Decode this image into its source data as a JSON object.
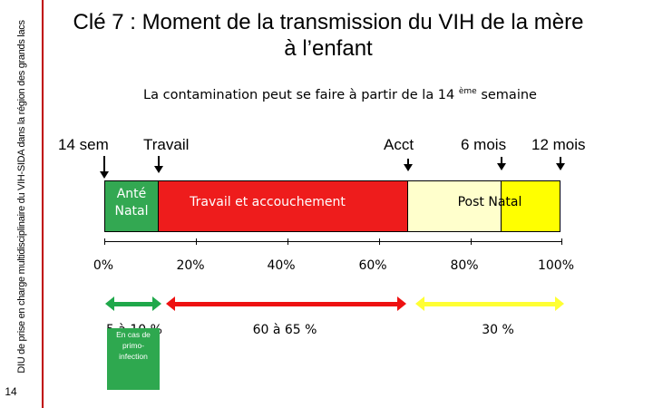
{
  "sidebar": {
    "text": "DIU de prise en charge multidisciplinaire du VIH-SIDA dans la région des grands lacs",
    "page_number": "14",
    "accent_color": "#c00000"
  },
  "title": {
    "line1": "Clé 7 : Moment de la transmission du VIH de la mère",
    "line2": "à l’enfant"
  },
  "subtitle": {
    "text_before": "La contamination peut se faire à partir de la 14",
    "superscript": "ème",
    "text_after": " semaine"
  },
  "markers": [
    {
      "label": "14 sem"
    },
    {
      "label": "Travail"
    },
    {
      "label": "Acct"
    },
    {
      "label": "6 mois"
    },
    {
      "label": "12 mois"
    }
  ],
  "segments": {
    "antenatal": {
      "line1": "Anté",
      "line2": "Natal",
      "color": "#33a852"
    },
    "travail": {
      "label": "Travail et accouchement",
      "color": "#ee1c1c"
    },
    "postnatal": {
      "label": "Post Natal",
      "color_light": "#ffffcc",
      "color_strong": "#ffff00"
    }
  },
  "axis": {
    "ticks": [
      "0%",
      "20%",
      "40%",
      "60%",
      "80%",
      "100%"
    ]
  },
  "ranges": [
    {
      "label": "5 à 10 %",
      "color": "#1fa84a"
    },
    {
      "label": "60 à 65 %",
      "color": "#ee1111"
    },
    {
      "label": "30 %",
      "color": "#ffff33"
    }
  ],
  "note": {
    "line1": "En cas de",
    "line2": "primo-",
    "line3": "infection"
  }
}
